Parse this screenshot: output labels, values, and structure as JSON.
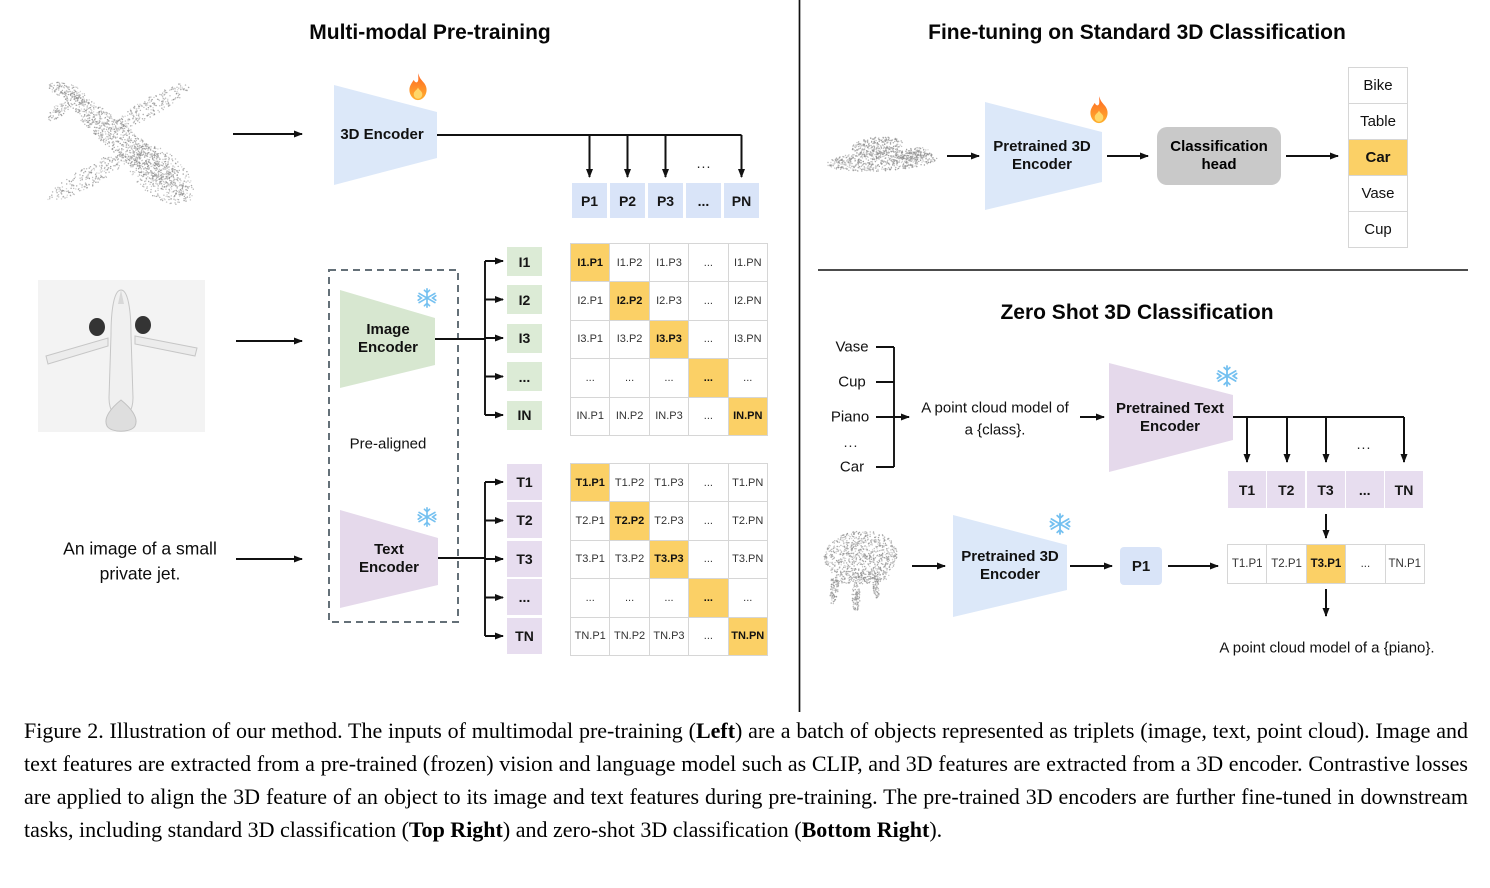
{
  "figure": {
    "panels": {
      "pretraining": {
        "title": "Multi-modal Pre-training",
        "input_image_caption_lines": [
          "An image of a small",
          "private jet."
        ],
        "encoder_3d": {
          "label": "3D Encoder",
          "status_icon": "fire-icon"
        },
        "image_encoder": {
          "label_lines": [
            "Image",
            "Encoder"
          ],
          "status_icon": "snowflake-icon"
        },
        "text_encoder": {
          "label_lines": [
            "Text",
            "Encoder"
          ],
          "status_icon": "snowflake-icon"
        },
        "prealigned_label": "Pre-aligned",
        "ellipsis": "...",
        "p_row": [
          "P1",
          "P2",
          "P3",
          "...",
          "PN"
        ],
        "i_col": [
          "I1",
          "I2",
          "I3",
          "...",
          "IN"
        ],
        "t_col": [
          "T1",
          "T2",
          "T3",
          "...",
          "TN"
        ],
        "i_matrix": [
          [
            "I1.P1",
            "I1.P2",
            "I1.P3",
            "...",
            "I1.PN"
          ],
          [
            "I2.P1",
            "I2.P2",
            "I2.P3",
            "...",
            "I2.PN"
          ],
          [
            "I3.P1",
            "I3.P2",
            "I3.P3",
            "...",
            "I3.PN"
          ],
          [
            "...",
            "...",
            "...",
            "...",
            "..."
          ],
          [
            "IN.P1",
            "IN.P2",
            "IN.P3",
            "...",
            "IN.PN"
          ]
        ],
        "t_matrix": [
          [
            "T1.P1",
            "T1.P2",
            "T1.P3",
            "...",
            "T1.PN"
          ],
          [
            "T2.P1",
            "T2.P2",
            "T2.P3",
            "...",
            "T2.PN"
          ],
          [
            "T3.P1",
            "T3.P2",
            "T3.P3",
            "...",
            "T3.PN"
          ],
          [
            "...",
            "...",
            "...",
            "...",
            "..."
          ],
          [
            "TN.P1",
            "TN.P2",
            "TN.P3",
            "...",
            "TN.PN"
          ]
        ]
      },
      "finetune": {
        "title": "Fine-tuning on Standard 3D Classification",
        "encoder": {
          "label_lines": [
            "Pretrained 3D",
            "Encoder"
          ],
          "status_icon": "fire-icon"
        },
        "head": {
          "label_lines": [
            "Classification",
            "head"
          ]
        },
        "classes": [
          "Bike",
          "Table",
          "Car",
          "Vase",
          "Cup"
        ],
        "predicted_index": 2
      },
      "zeroshot": {
        "title": "Zero Shot 3D Classification",
        "class_list": [
          "Vase",
          "Cup",
          "Piano",
          "...",
          "Car"
        ],
        "prompt_lines": [
          "A point cloud model of",
          "a {class}."
        ],
        "text_encoder": {
          "label_lines": [
            "Pretrained Text",
            "Encoder"
          ],
          "status_icon": "snowflake-icon"
        },
        "encoder_3d": {
          "label_lines": [
            "Pretrained 3D",
            "Encoder"
          ],
          "status_icon": "snowflake-icon"
        },
        "t_row": [
          "T1",
          "T2",
          "T3",
          "...",
          "TN"
        ],
        "p_box_label": "P1",
        "sim_row": [
          "T1.P1",
          "T2.P1",
          "T3.P1",
          "...",
          "TN.P1"
        ],
        "matched_index": 2,
        "ellipsis": "...",
        "output_text": "A point cloud model of a {piano}."
      }
    },
    "caption_segments": [
      {
        "text": "Figure 2. Illustration of our method. The inputs of multimodal pre-training (",
        "bold": false
      },
      {
        "text": "Left",
        "bold": true
      },
      {
        "text": ") are a batch of objects represented as triplets (image, text, point cloud). Image and text features are extracted from a pre-trained (frozen) vision and language model such as CLIP, and 3D features are extracted from a 3D encoder. Contrastive losses are applied to align the 3D feature of an object to its image and text features during pre-training. The pre-trained 3D encoders are further fine-tuned in downstream tasks, including standard 3D classification (",
        "bold": false
      },
      {
        "text": "Top Right",
        "bold": true
      },
      {
        "text": ") and zero-shot 3D classification (",
        "bold": false
      },
      {
        "text": "Bottom Right",
        "bold": true
      },
      {
        "text": ").",
        "bold": false
      }
    ]
  },
  "icons": {
    "fire": "fire-icon (trainable)",
    "snowflake": "snowflake-icon (frozen)",
    "airplane_cloud": "airplane-point-cloud",
    "airplane_photo": "airplane-photo",
    "car_cloud": "car-point-cloud",
    "piano_cloud": "piano-point-cloud"
  },
  "colors": {
    "encoder_blue": "#dce8f9",
    "encoder_green": "#d7e7d0",
    "encoder_purple": "#e5d9eb",
    "cell_blue": "#d9e4f8",
    "cell_green": "#dcebd6",
    "cell_purple": "#e7ddef",
    "highlight_orange": "#fbd066",
    "head_gray": "#c9c9c9",
    "matrix_border": "#d6d6d6",
    "line_black": "#111111",
    "dashed_border": "#647078",
    "pointcloud_gray": "#909090",
    "photo_bg": "#f3f3f3",
    "snowflake_blue": "#74c0f0"
  }
}
